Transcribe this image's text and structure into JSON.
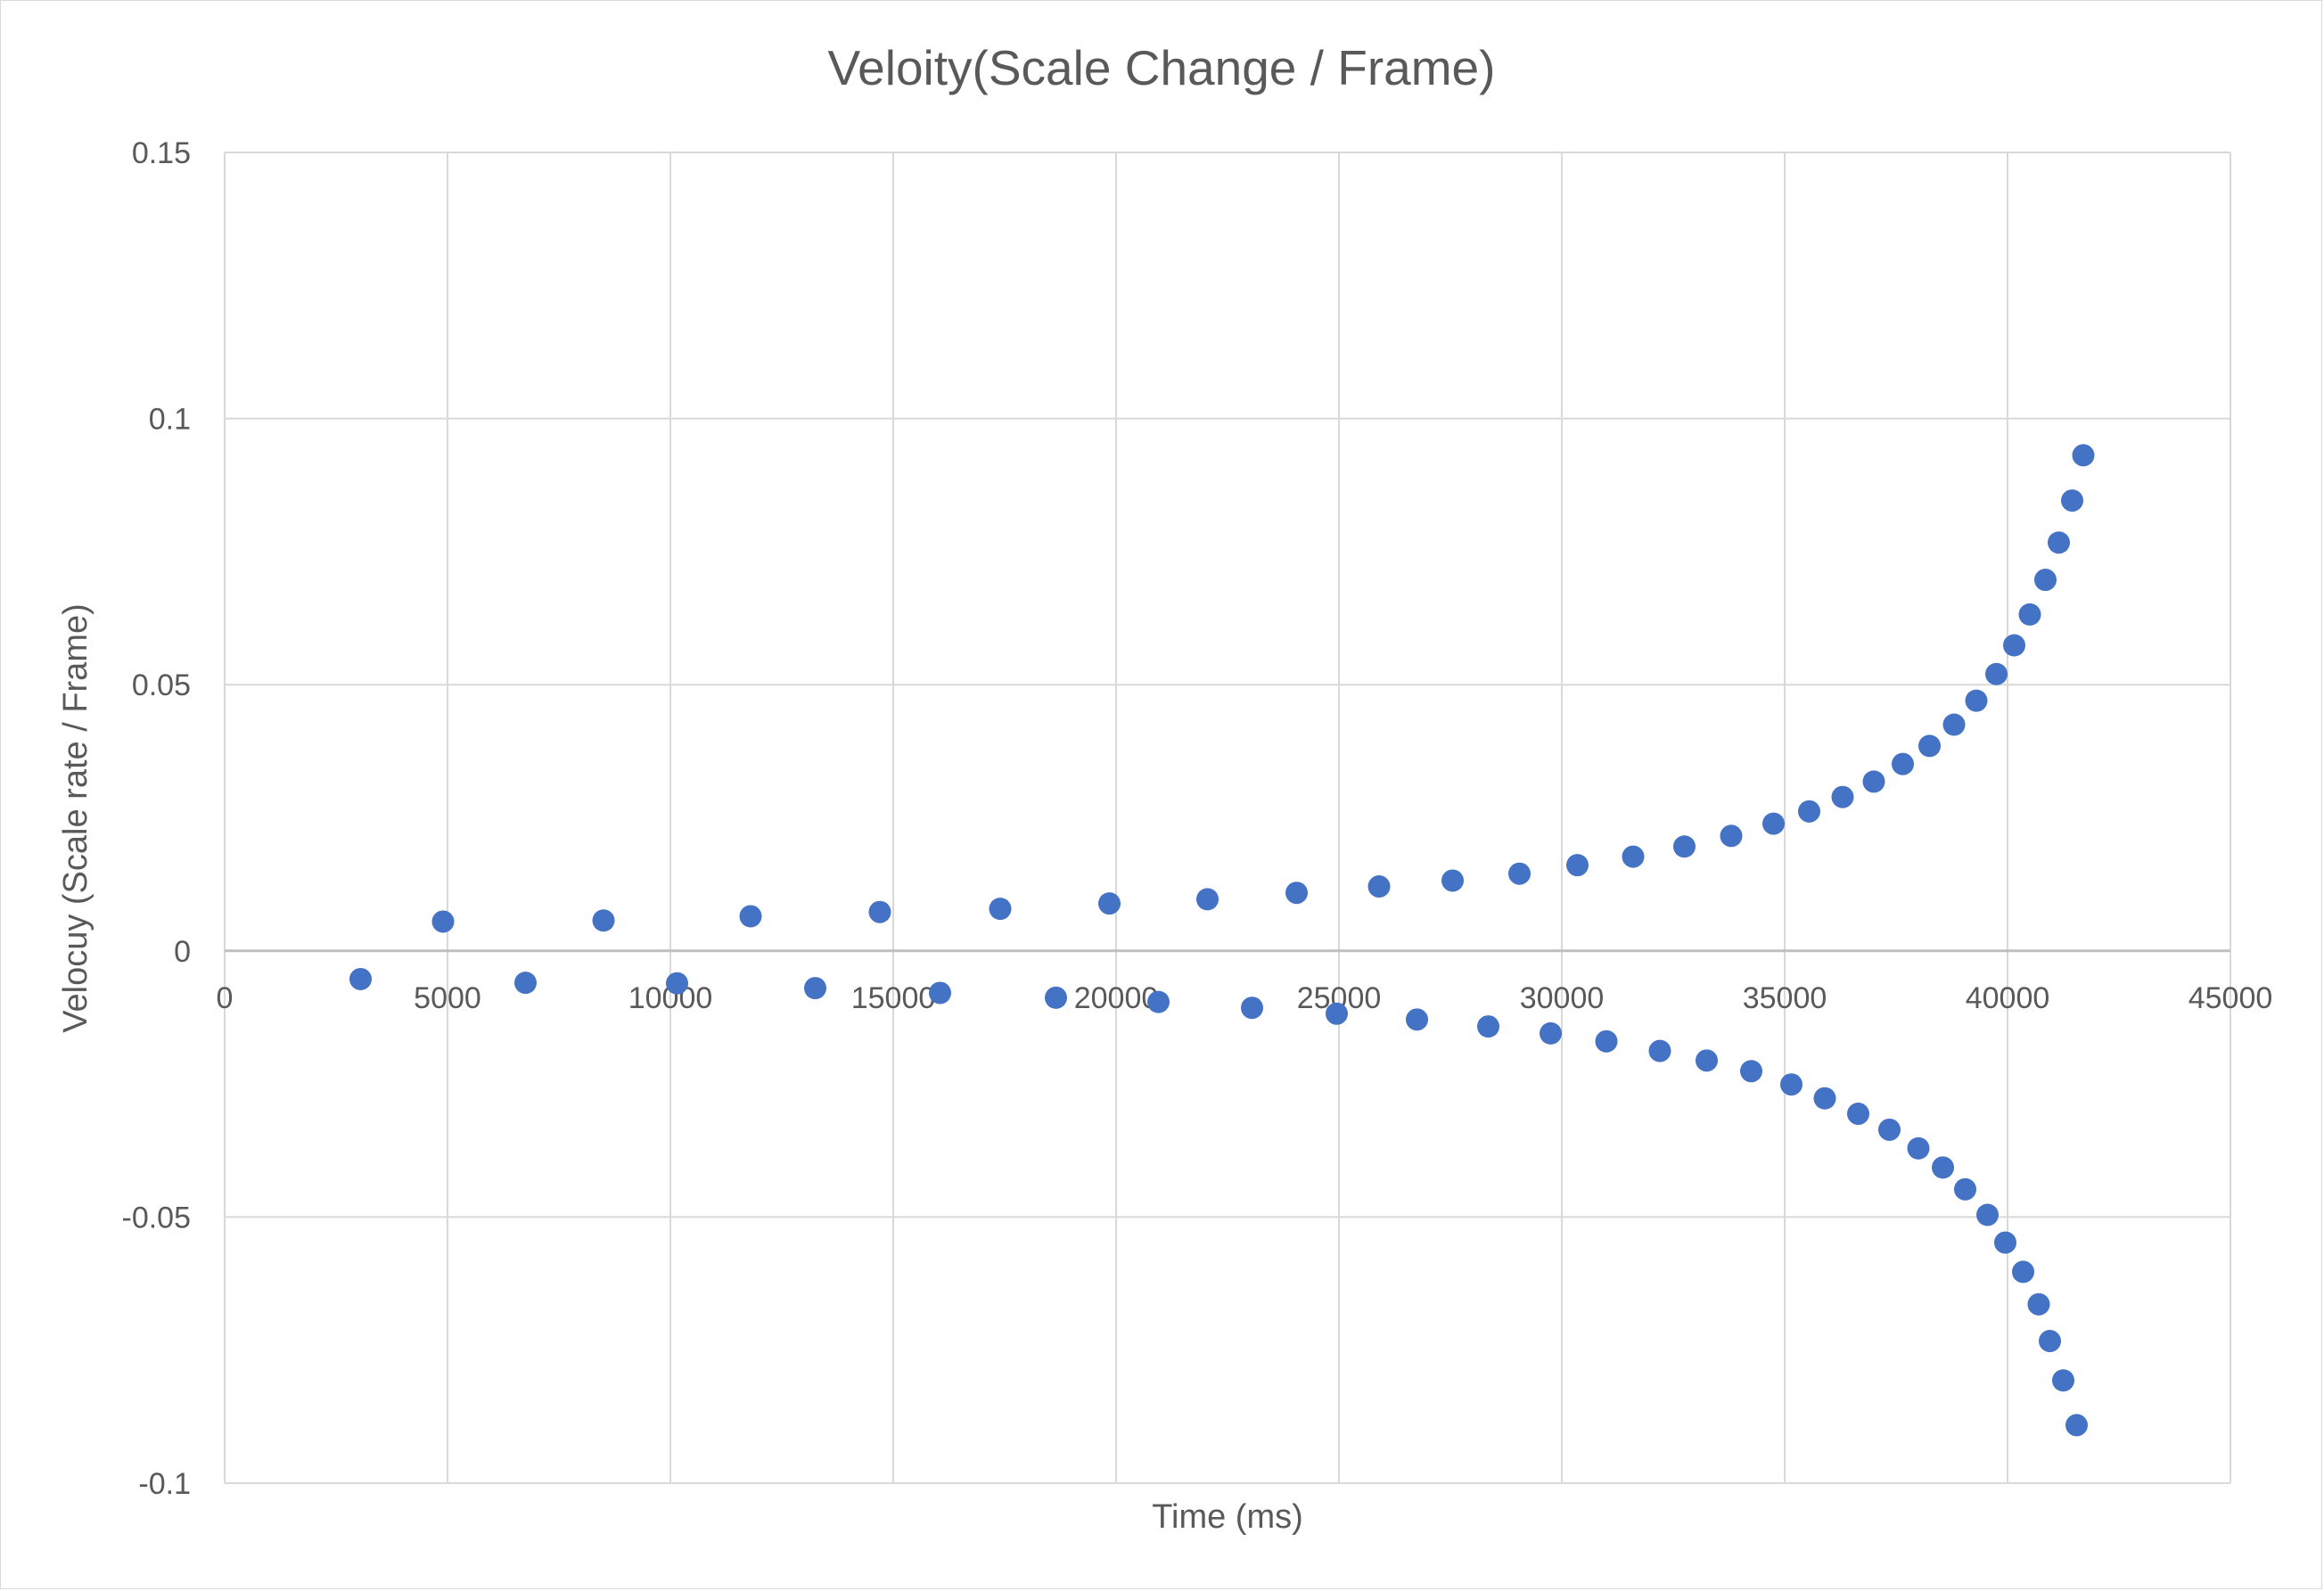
{
  "chart_data": {
    "type": "scatter",
    "title": "Veloity(Scale Change / Frame)",
    "xlabel": "Time (ms)",
    "ylabel": "Velocuy (Scale rate / Frame)",
    "xlim": [
      0,
      45000
    ],
    "ylim": [
      -0.1,
      0.15
    ],
    "x_ticks": [
      "0",
      "5000",
      "10000",
      "15000",
      "20000",
      "25000",
      "30000",
      "35000",
      "40000",
      "45000"
    ],
    "y_ticks": [
      "-0.1",
      "-0.05",
      "0",
      "0.05",
      "0.1",
      "0.15"
    ],
    "grid": true,
    "legend": "none",
    "colors": {
      "marker": "#4472c4",
      "grid": "#d9d9d9",
      "axis": "#bfbfbf",
      "text": "#595959"
    },
    "series": [
      {
        "name": "Velocity",
        "points": [
          [
            4900,
            0.0055
          ],
          [
            8500,
            0.0057
          ],
          [
            11800,
            0.0065
          ],
          [
            14700,
            0.0073
          ],
          [
            17400,
            0.0079
          ],
          [
            19850,
            0.0089
          ],
          [
            22050,
            0.0097
          ],
          [
            24050,
            0.0109
          ],
          [
            25900,
            0.0121
          ],
          [
            27550,
            0.0132
          ],
          [
            29050,
            0.0145
          ],
          [
            30350,
            0.0161
          ],
          [
            31600,
            0.0177
          ],
          [
            32750,
            0.0196
          ],
          [
            33800,
            0.0216
          ],
          [
            34750,
            0.0239
          ],
          [
            35550,
            0.0262
          ],
          [
            36300,
            0.0289
          ],
          [
            37000,
            0.0318
          ],
          [
            37650,
            0.0351
          ],
          [
            38250,
            0.0385
          ],
          [
            38800,
            0.0425
          ],
          [
            39300,
            0.047
          ],
          [
            39750,
            0.052
          ],
          [
            40150,
            0.0574
          ],
          [
            40500,
            0.0632
          ],
          [
            40850,
            0.0697
          ],
          [
            41150,
            0.0767
          ],
          [
            41450,
            0.0846
          ],
          [
            41700,
            0.0931
          ],
          [
            3050,
            -0.0053
          ],
          [
            6750,
            -0.006
          ],
          [
            10150,
            -0.0061
          ],
          [
            13250,
            -0.007
          ],
          [
            16050,
            -0.0079
          ],
          [
            18650,
            -0.0088
          ],
          [
            20950,
            -0.0096
          ],
          [
            23050,
            -0.0107
          ],
          [
            24950,
            -0.0118
          ],
          [
            26750,
            -0.0129
          ],
          [
            28350,
            -0.0142
          ],
          [
            29750,
            -0.0155
          ],
          [
            31000,
            -0.017
          ],
          [
            32200,
            -0.0188
          ],
          [
            33250,
            -0.0206
          ],
          [
            34250,
            -0.0226
          ],
          [
            35150,
            -0.0251
          ],
          [
            35900,
            -0.0277
          ],
          [
            36650,
            -0.0306
          ],
          [
            37350,
            -0.0336
          ],
          [
            38000,
            -0.0371
          ],
          [
            38550,
            -0.0407
          ],
          [
            39050,
            -0.0448
          ],
          [
            39550,
            -0.0496
          ],
          [
            39950,
            -0.0548
          ],
          [
            40350,
            -0.0603
          ],
          [
            40700,
            -0.0664
          ],
          [
            40950,
            -0.0733
          ],
          [
            41250,
            -0.0807
          ],
          [
            41550,
            -0.0891
          ]
        ]
      }
    ]
  }
}
